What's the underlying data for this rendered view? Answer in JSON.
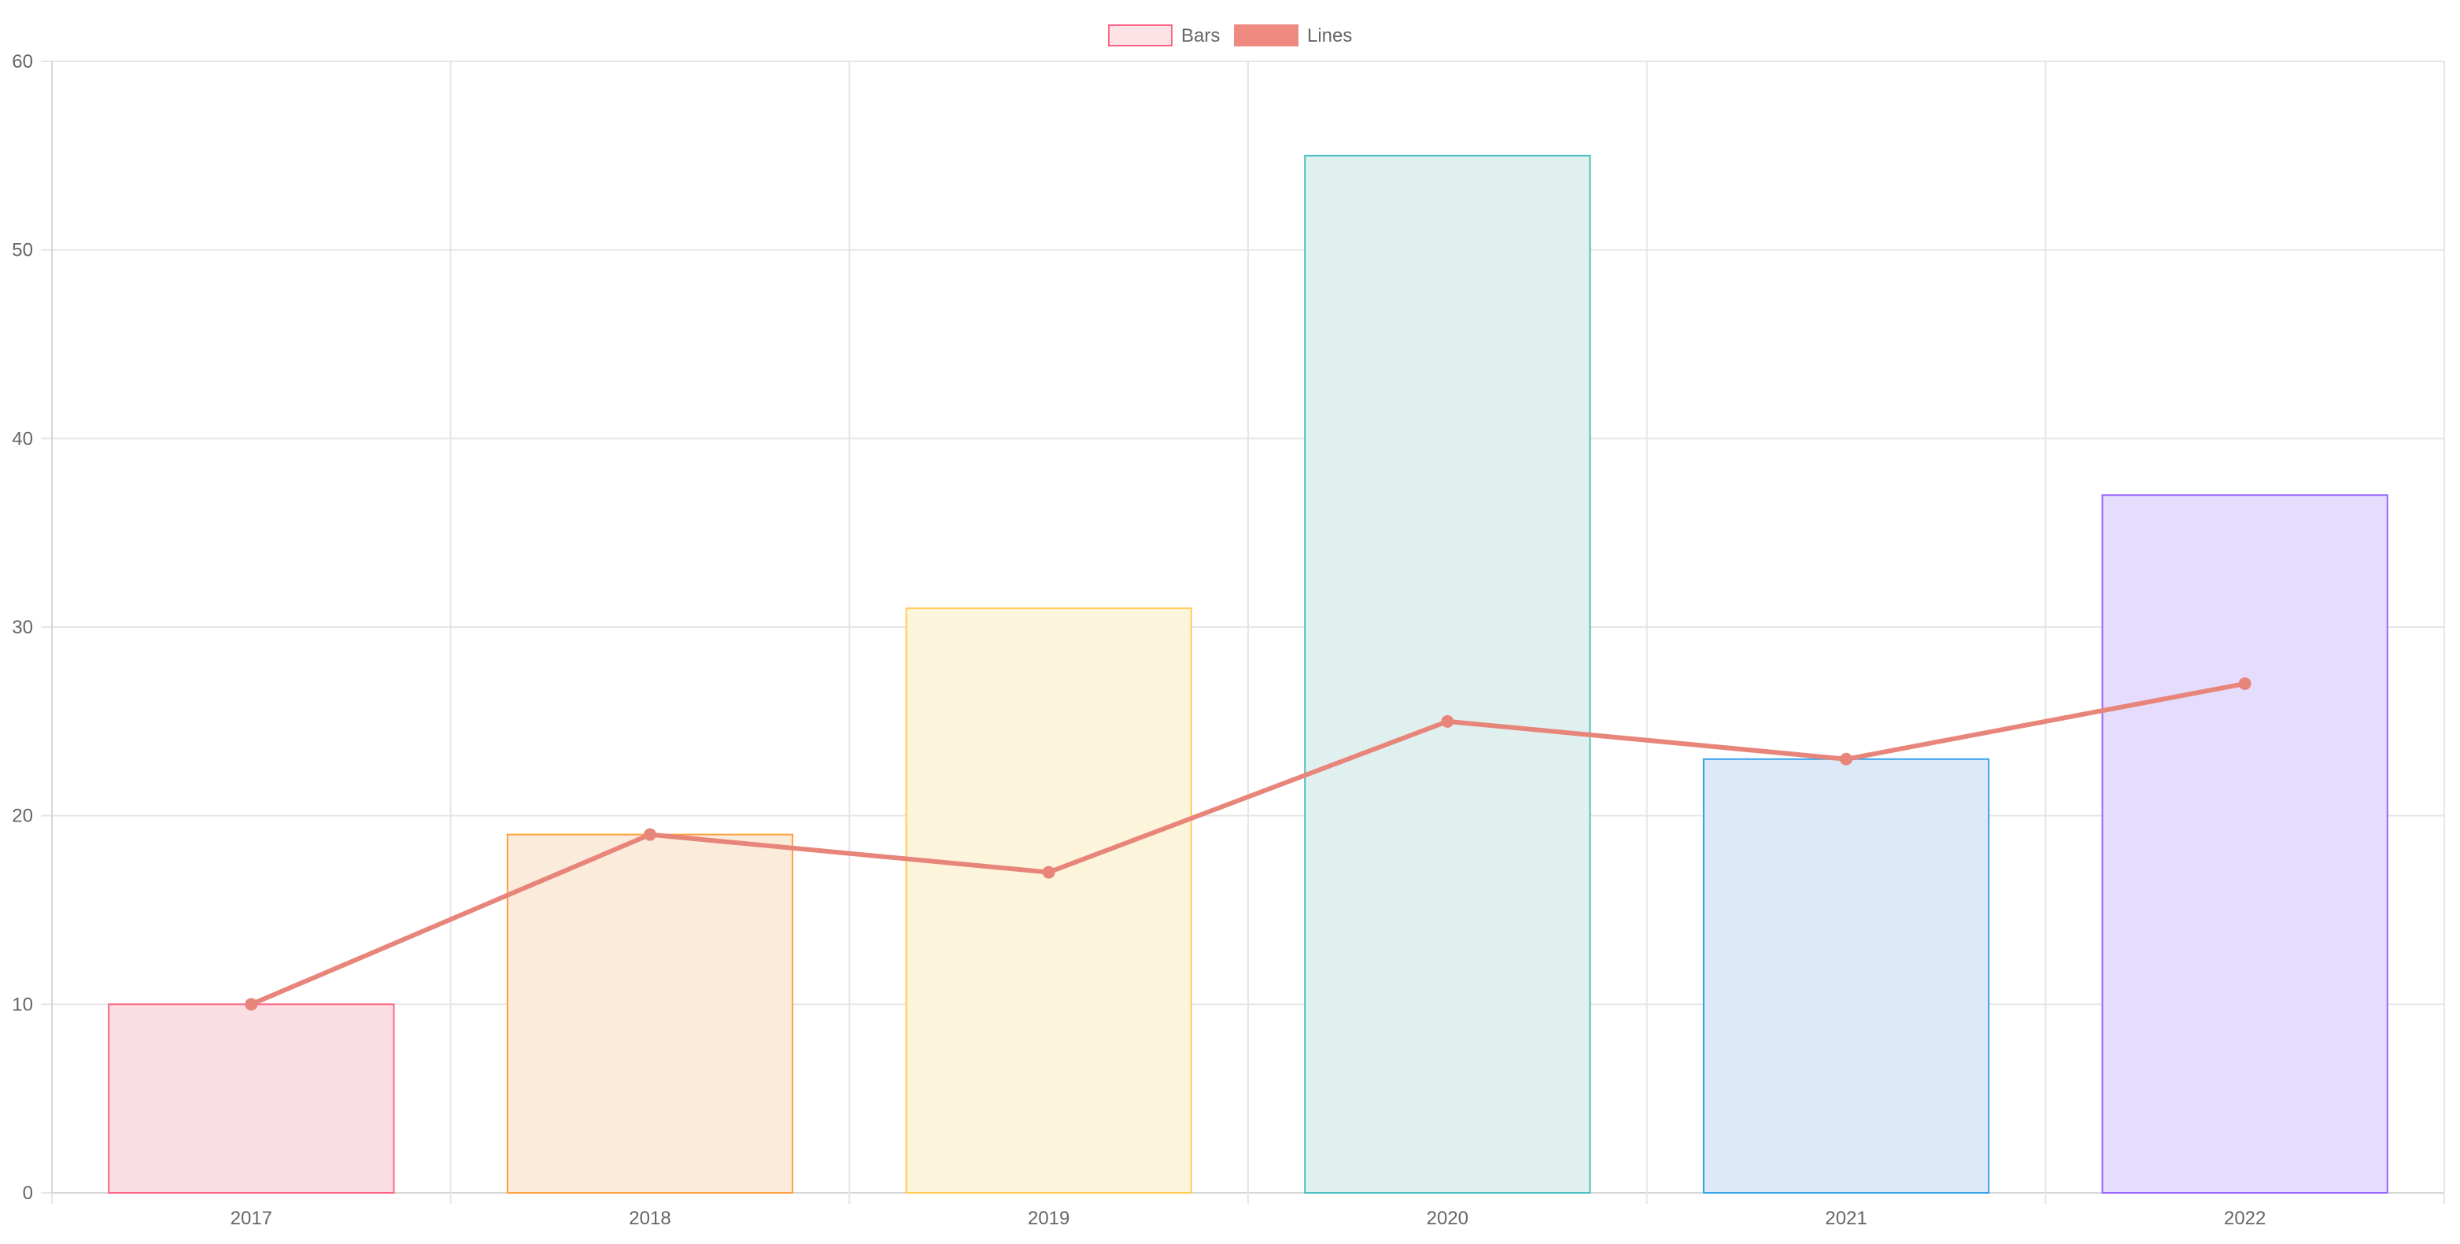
{
  "chart_data": {
    "type": "bar",
    "categories": [
      "2017",
      "2018",
      "2019",
      "2020",
      "2021",
      "2022"
    ],
    "series": [
      {
        "name": "Bars",
        "type": "bar",
        "values": [
          10,
          19,
          31,
          55,
          23,
          37
        ],
        "fill_colors": [
          "#fadee4",
          "#fbebda",
          "#fdf4dc",
          "#e0f0ef",
          "#dce9f8",
          "#e6dcfd"
        ],
        "border_colors": [
          "#ff6384",
          "#ff9f40",
          "#ffcd56",
          "#4bc0c0",
          "#36a2eb",
          "#9966ff"
        ],
        "legend_fill": "#fde2e6",
        "legend_border": "#ff6384"
      },
      {
        "name": "Lines",
        "type": "line",
        "values": [
          10,
          19,
          17,
          25,
          23,
          27
        ],
        "color": "#e8857a",
        "legend_fill": "#ef8a80"
      }
    ],
    "ylim": [
      0,
      60
    ],
    "yticks": [
      "0",
      "10",
      "20",
      "30",
      "40",
      "50",
      "60"
    ],
    "grid": true,
    "legend_position": "top-center",
    "grid_color": "#e6e6e6",
    "axis_color": "#d6d6d6"
  }
}
